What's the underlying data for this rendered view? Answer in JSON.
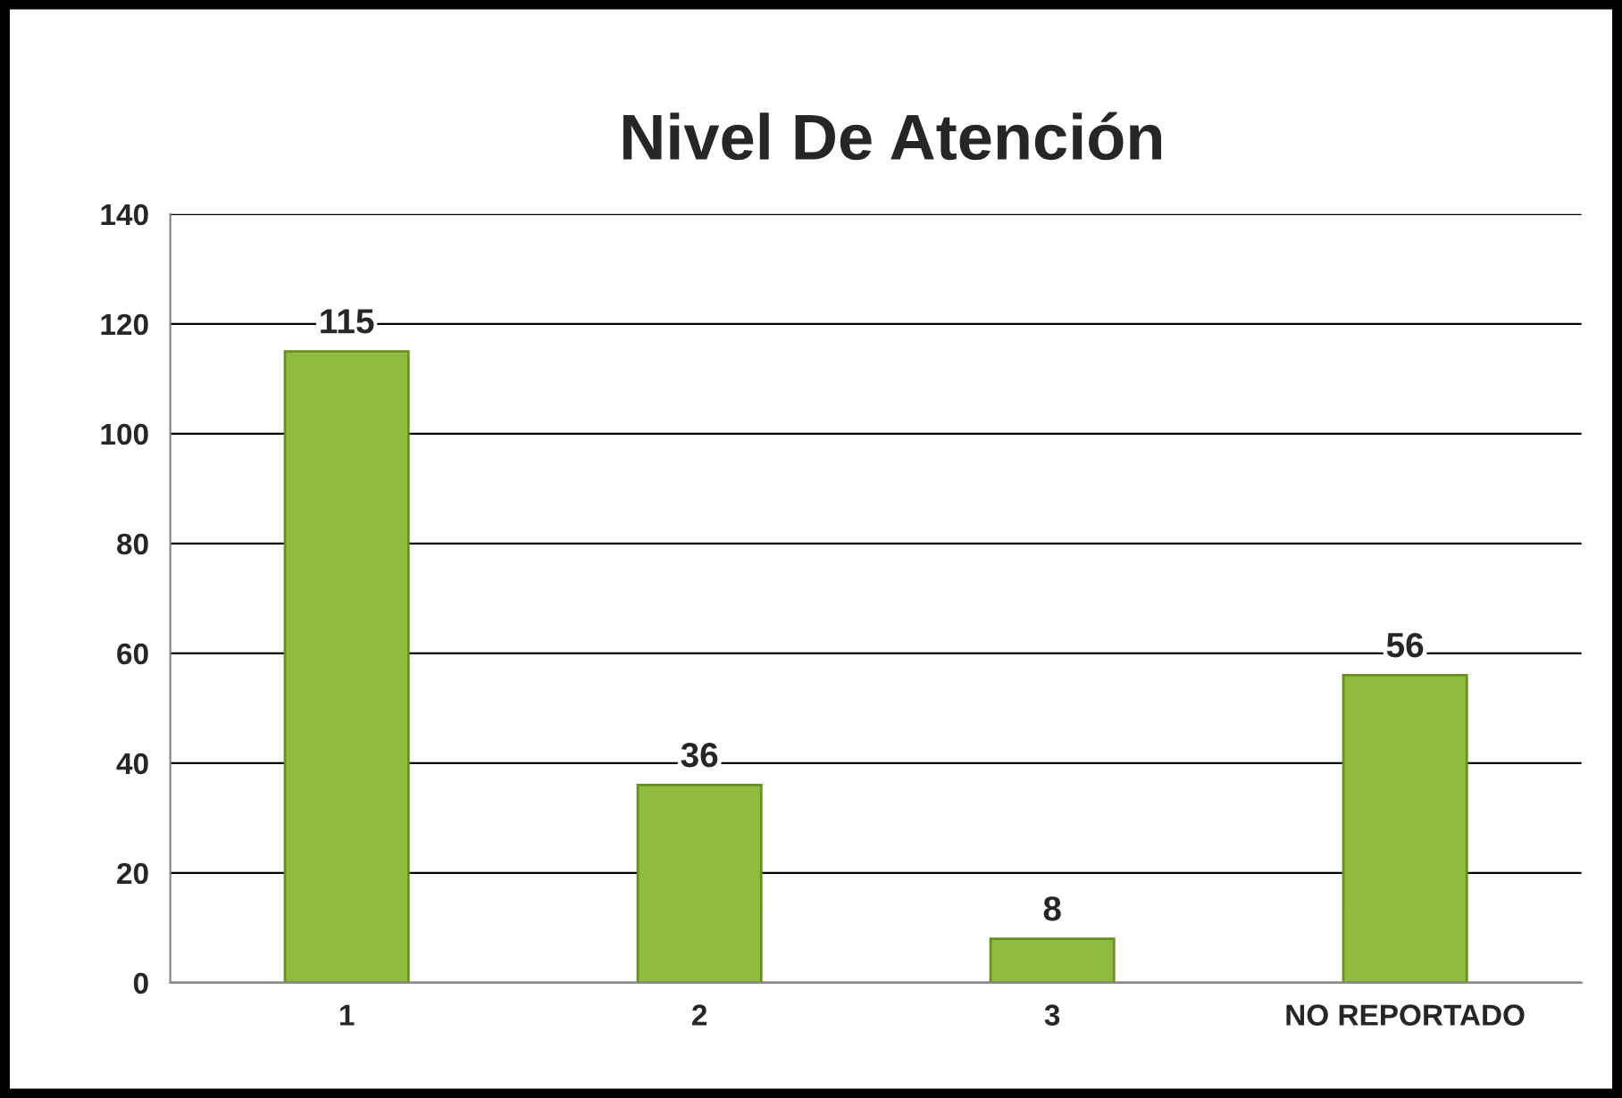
{
  "chart_data": {
    "type": "bar",
    "title": "Nivel De Atención",
    "categories": [
      "1",
      "2",
      "3",
      "NO REPORTADO"
    ],
    "values": [
      115,
      36,
      8,
      56
    ],
    "color": "#8fbc3f",
    "ylim": [
      0,
      140
    ],
    "yticks": [
      0,
      20,
      40,
      60,
      80,
      100,
      120,
      140
    ],
    "grid": "y",
    "data_labels": true
  }
}
